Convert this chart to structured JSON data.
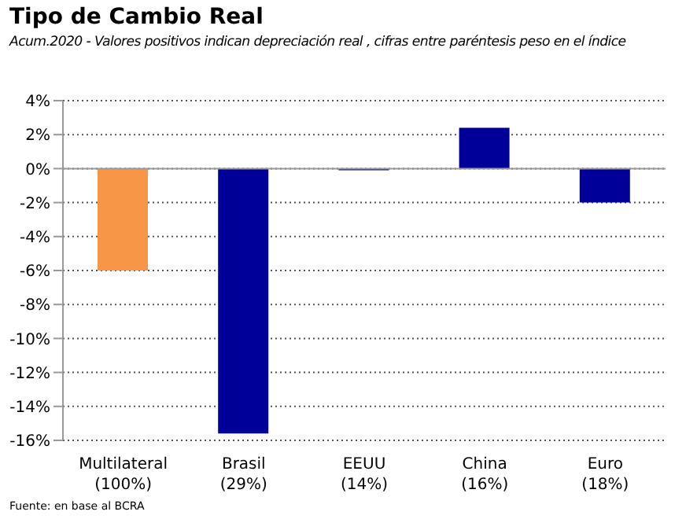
{
  "chart_data": {
    "type": "bar",
    "title": "Tipo de Cambio Real",
    "subtitle": "Acum.2020 - Valores positivos indican depreciación real , cifras entre paréntesis peso en el índice",
    "categories": [
      "Multilateral\n(100%)",
      "Brasil\n(29%)",
      "EEUU\n(14%)",
      "China\n(16%)",
      "Euro\n(18%)"
    ],
    "values": [
      -6.0,
      -15.6,
      -0.1,
      2.4,
      -2.0
    ],
    "colors": [
      "#f79646",
      "#000099",
      "#000099",
      "#000099",
      "#000099"
    ],
    "ylim": [
      -16,
      4
    ],
    "yticks": [
      {
        "value": -16,
        "label": "-16%"
      },
      {
        "value": -14,
        "label": "-14%"
      },
      {
        "value": -12,
        "label": "-12%"
      },
      {
        "value": -10,
        "label": "-10%"
      },
      {
        "value": -8,
        "label": "-8%"
      },
      {
        "value": -6,
        "label": "-6%"
      },
      {
        "value": -4,
        "label": "-4%"
      },
      {
        "value": -2,
        "label": "-2%"
      },
      {
        "value": 0,
        "label": "0%"
      },
      {
        "value": 2,
        "label": "2%"
      },
      {
        "value": 4,
        "label": "4%"
      }
    ],
    "grid": "y",
    "annotations": [
      "Fuente: en base al BCRA"
    ]
  }
}
